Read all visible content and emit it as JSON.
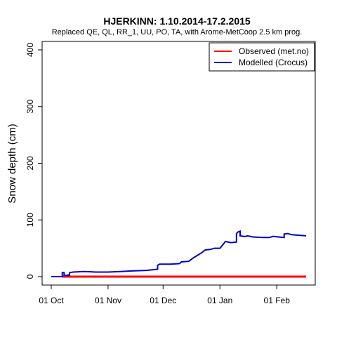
{
  "chart_data": {
    "type": "line",
    "title": "HJERKINN: 1.10.2014-17.2.2015",
    "subtitle": "Replaced QE, QL, RR_1, UU, PO, TA,  with Arome-MetCoop 2.5 km prog.",
    "xlabel": "",
    "ylabel": "Snow depth (cm)",
    "xlim": [
      "2014-10-01",
      "2015-02-17"
    ],
    "ylim": [
      0,
      400
    ],
    "yticks": [
      0,
      100,
      200,
      300,
      400
    ],
    "xticks": [
      {
        "date": "2014-10-01",
        "label": "01 Oct"
      },
      {
        "date": "2014-11-01",
        "label": "01 Nov"
      },
      {
        "date": "2014-12-01",
        "label": "01 Dec"
      },
      {
        "date": "2015-01-01",
        "label": "01 Jan"
      },
      {
        "date": "2015-02-01",
        "label": "01 Feb"
      }
    ],
    "grid": false,
    "legend_position": "top-right",
    "series": [
      {
        "name": "Observed (met.no)",
        "color": "#ff0000",
        "points": [
          [
            "2014-10-07",
            0
          ],
          [
            "2015-02-17",
            0
          ]
        ]
      },
      {
        "name": "Modelled (Crocus)",
        "color": "#0000cc",
        "points": [
          [
            "2014-10-01",
            0
          ],
          [
            "2014-10-07",
            0
          ],
          [
            "2014-10-07",
            7
          ],
          [
            "2014-10-08",
            7
          ],
          [
            "2014-10-08",
            2
          ],
          [
            "2014-10-10",
            2
          ],
          [
            "2014-10-10",
            3
          ],
          [
            "2014-10-11",
            3
          ],
          [
            "2014-10-11",
            7
          ],
          [
            "2014-10-13",
            8
          ],
          [
            "2014-10-19",
            9
          ],
          [
            "2014-10-25",
            8
          ],
          [
            "2014-11-01",
            8
          ],
          [
            "2014-11-08",
            9
          ],
          [
            "2014-11-14",
            10
          ],
          [
            "2014-11-22",
            11
          ],
          [
            "2014-11-28",
            13
          ],
          [
            "2014-11-28",
            20
          ],
          [
            "2014-11-29",
            22
          ],
          [
            "2014-12-05",
            22
          ],
          [
            "2014-12-10",
            23
          ],
          [
            "2014-12-11",
            26
          ],
          [
            "2014-12-15",
            27
          ],
          [
            "2014-12-17",
            32
          ],
          [
            "2014-12-19",
            36
          ],
          [
            "2014-12-22",
            42
          ],
          [
            "2014-12-24",
            47
          ],
          [
            "2014-12-27",
            48
          ],
          [
            "2014-12-29",
            50
          ],
          [
            "2015-01-01",
            50
          ],
          [
            "2015-01-02",
            54
          ],
          [
            "2015-01-03",
            58
          ],
          [
            "2015-01-04",
            62
          ],
          [
            "2015-01-07",
            60
          ],
          [
            "2015-01-10",
            61
          ],
          [
            "2015-01-10",
            76
          ],
          [
            "2015-01-11",
            79
          ],
          [
            "2015-01-12",
            80
          ],
          [
            "2015-01-12",
            72
          ],
          [
            "2015-01-14",
            71
          ],
          [
            "2015-01-15",
            71
          ],
          [
            "2015-01-16",
            72
          ],
          [
            "2015-01-19",
            70
          ],
          [
            "2015-01-24",
            69
          ],
          [
            "2015-01-28",
            69
          ],
          [
            "2015-01-30",
            71
          ],
          [
            "2015-02-02",
            70
          ],
          [
            "2015-02-05",
            69
          ],
          [
            "2015-02-05",
            75
          ],
          [
            "2015-02-07",
            76
          ],
          [
            "2015-02-09",
            74
          ],
          [
            "2015-02-17",
            72
          ]
        ]
      }
    ]
  }
}
